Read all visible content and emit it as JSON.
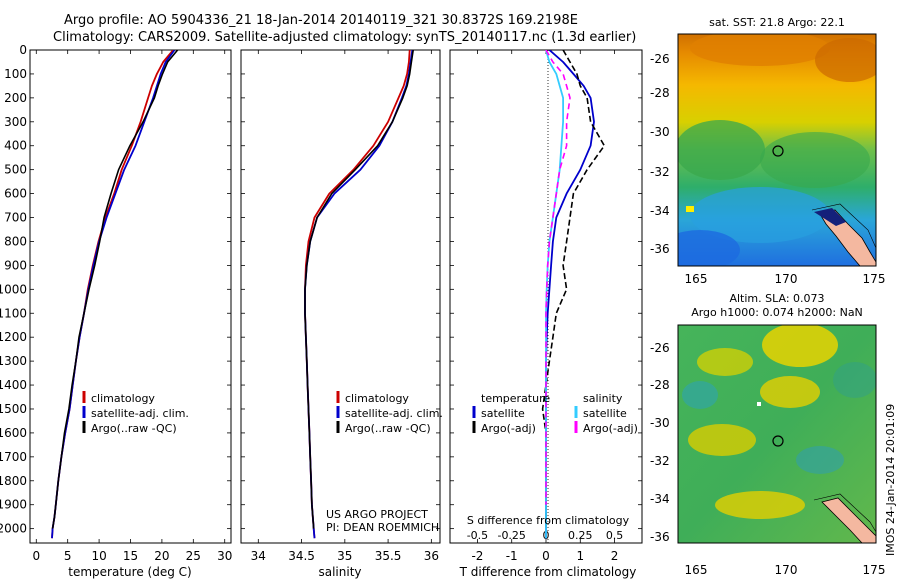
{
  "header": {
    "title_line1": "Argo profile: AO 5904336_21 18-Jan-2014 20140119_321 30.8372S 169.2198E",
    "title_line2": "Climatology: CARS2009. Satellite-adjusted climatology: synTS_20140117.nc (1.3d earlier)"
  },
  "colors": {
    "climatology": "#cc0000",
    "satellite": "#0000cc",
    "argo": "#000000",
    "salinity_satellite": "#33ccff",
    "salinity_argo": "#ff00ff"
  },
  "chart_data": [
    {
      "type": "line",
      "panel": "temperature",
      "xlabel": "temperature (deg C)",
      "xlim": [
        -1,
        31
      ],
      "xticks": [
        0,
        5,
        10,
        15,
        20,
        25,
        30
      ],
      "ylim": [
        2060,
        0
      ],
      "yticks": [
        0,
        100,
        200,
        300,
        400,
        500,
        600,
        700,
        800,
        900,
        1000,
        1100,
        1200,
        1300,
        1400,
        1500,
        1600,
        1700,
        1800,
        1900,
        2000
      ],
      "legend": [
        "climatology",
        "satellite-adj. clim.",
        "Argo(..raw -QC)"
      ],
      "series": [
        {
          "name": "climatology",
          "x": [
            21.8,
            20.2,
            19.2,
            18.4,
            17.8,
            16.6,
            15.2,
            13.6,
            12.4,
            11.0,
            9.9,
            9.0,
            8.2,
            7.6,
            6.9,
            6.3,
            5.8,
            5.3,
            4.6,
            4.0,
            3.5,
            3.1,
            2.9,
            2.6,
            2.5
          ],
          "y": [
            0,
            50,
            100,
            150,
            200,
            300,
            400,
            500,
            600,
            700,
            800,
            900,
            1000,
            1100,
            1200,
            1300,
            1400,
            1500,
            1600,
            1700,
            1800,
            1900,
            1950,
            2000,
            2040
          ]
        },
        {
          "name": "satellite-adj. clim.",
          "x": [
            22.0,
            20.6,
            19.8,
            19.2,
            18.6,
            17.2,
            15.8,
            14.0,
            12.6,
            11.2,
            10.0,
            9.1,
            8.3,
            7.6,
            6.9,
            6.3,
            5.8,
            5.3,
            4.6,
            4.0,
            3.5,
            3.1,
            2.9,
            2.6,
            2.5
          ],
          "y": [
            0,
            50,
            100,
            150,
            200,
            300,
            400,
            500,
            600,
            700,
            800,
            900,
            1000,
            1100,
            1200,
            1300,
            1400,
            1500,
            1600,
            1700,
            1800,
            1900,
            1950,
            2000,
            2040
          ]
        },
        {
          "name": "Argo(..raw -QC)",
          "x": [
            22.5,
            20.9,
            20.1,
            19.4,
            18.8,
            17.0,
            14.9,
            13.1,
            11.9,
            10.8,
            10.1,
            9.3,
            8.4,
            7.6,
            6.8,
            6.3,
            5.7,
            5.2,
            4.5,
            4.0,
            3.5,
            3.1,
            2.9,
            2.6
          ],
          "y": [
            0,
            50,
            100,
            150,
            200,
            300,
            400,
            500,
            600,
            700,
            800,
            900,
            1000,
            1100,
            1200,
            1300,
            1400,
            1500,
            1600,
            1700,
            1800,
            1900,
            1950,
            2000
          ]
        }
      ]
    },
    {
      "type": "line",
      "panel": "salinity",
      "xlabel": "salinity",
      "xlim": [
        33.8,
        36.1
      ],
      "xticks": [
        34,
        34.5,
        35,
        35.5,
        36
      ],
      "ylim": [
        2060,
        0
      ],
      "legend": [
        "climatology",
        "satellite-adj. clim.",
        "Argo(..raw -QC)"
      ],
      "annotation": [
        "US ARGO PROJECT",
        "PI: DEAN ROEMMICH"
      ],
      "series": [
        {
          "name": "climatology",
          "x": [
            35.75,
            35.74,
            35.72,
            35.68,
            35.62,
            35.5,
            35.33,
            35.1,
            34.82,
            34.65,
            34.58,
            34.55,
            34.54,
            34.54,
            34.55,
            34.56,
            34.57,
            34.58,
            34.59,
            34.6,
            34.61,
            34.62,
            34.63,
            34.64,
            34.65
          ],
          "y": [
            0,
            50,
            100,
            150,
            200,
            300,
            400,
            500,
            600,
            700,
            800,
            900,
            1000,
            1100,
            1200,
            1300,
            1400,
            1500,
            1600,
            1700,
            1800,
            1900,
            1950,
            2000,
            2040
          ]
        },
        {
          "name": "satellite-adj. clim.",
          "x": [
            35.78,
            35.76,
            35.74,
            35.71,
            35.66,
            35.55,
            35.4,
            35.18,
            34.88,
            34.68,
            34.6,
            34.56,
            34.54,
            34.54,
            34.55,
            34.56,
            34.57,
            34.58,
            34.59,
            34.6,
            34.61,
            34.62,
            34.63,
            34.64,
            34.65
          ],
          "y": [
            0,
            50,
            100,
            150,
            200,
            300,
            400,
            500,
            600,
            700,
            800,
            900,
            1000,
            1100,
            1200,
            1300,
            1400,
            1500,
            1600,
            1700,
            1800,
            1900,
            1950,
            2000,
            2040
          ]
        },
        {
          "name": "Argo(..raw -QC)",
          "x": [
            35.79,
            35.77,
            35.75,
            35.72,
            35.67,
            35.55,
            35.38,
            35.12,
            34.85,
            34.68,
            34.6,
            34.56,
            34.54,
            34.54,
            34.55,
            34.56,
            34.57,
            34.58,
            34.59,
            34.6,
            34.61,
            34.62,
            34.63,
            34.64
          ],
          "y": [
            0,
            50,
            100,
            150,
            200,
            300,
            400,
            500,
            600,
            700,
            800,
            900,
            1000,
            1100,
            1200,
            1300,
            1400,
            1500,
            1600,
            1700,
            1800,
            1900,
            1950,
            2000
          ]
        }
      ]
    },
    {
      "type": "line",
      "panel": "difference",
      "xlabel": "T difference from climatology",
      "xlabel_top": "S difference from climatology",
      "xlim": [
        -2.8,
        2.8
      ],
      "xticks": [
        -2,
        -1,
        0,
        1,
        2
      ],
      "sticks": [
        "-0.5",
        "-0.25",
        "0",
        "0.25",
        "0.5"
      ],
      "ylim": [
        2060,
        0
      ],
      "legend_temperature_title": "temperature",
      "legend_salinity_title": "salinity",
      "legend": [
        "satellite",
        "Argo(-adj)",
        "satellite",
        "Argo(-adj)"
      ],
      "series": [
        {
          "name": "satellite",
          "x": [
            0.1,
            0.5,
            0.8,
            1.1,
            1.3,
            1.4,
            1.3,
            1.0,
            0.6,
            0.3,
            0.2,
            0.15,
            0.1,
            0.05,
            0.02,
            0.0,
            0.0,
            0.0,
            0.0,
            0.0,
            0.0,
            0.0,
            0.0
          ],
          "y": [
            0,
            50,
            100,
            150,
            200,
            300,
            400,
            500,
            600,
            700,
            800,
            900,
            1000,
            1100,
            1200,
            1300,
            1400,
            1500,
            1600,
            1700,
            1800,
            1900,
            2040
          ]
        },
        {
          "name": "Argo(-adj)",
          "x": [
            0.5,
            0.7,
            0.9,
            1.0,
            1.2,
            1.3,
            1.7,
            1.2,
            0.8,
            0.7,
            0.6,
            0.5,
            0.6,
            0.3,
            0.2,
            0.1,
            0.0,
            -0.1,
            0.0,
            0.0,
            0.0,
            0.0,
            0.0
          ],
          "y": [
            0,
            50,
            100,
            150,
            200,
            300,
            400,
            500,
            600,
            700,
            800,
            900,
            1000,
            1100,
            1200,
            1300,
            1400,
            1500,
            1600,
            1700,
            1800,
            1900,
            2000
          ]
        },
        {
          "name": "satellite",
          "x": [
            0.0,
            0.1,
            0.3,
            0.4,
            0.5,
            0.5,
            0.45,
            0.4,
            0.3,
            0.2,
            0.1,
            0.05,
            0.02,
            0.0,
            0.0,
            0.0,
            0.0,
            0.0,
            0.0,
            0.0,
            0.0,
            0.0,
            0.0
          ],
          "y": [
            0,
            50,
            100,
            150,
            200,
            300,
            400,
            500,
            600,
            700,
            800,
            900,
            1000,
            1100,
            1200,
            1300,
            1400,
            1500,
            1600,
            1700,
            1800,
            1900,
            2040
          ]
        },
        {
          "name": "Argo(-adj)",
          "x": [
            0.0,
            0.2,
            0.5,
            0.6,
            0.7,
            0.6,
            0.6,
            0.4,
            0.3,
            0.2,
            0.1,
            0.05,
            0.02,
            0.0,
            0.0,
            0.0,
            0.0,
            0.0,
            0.0,
            0.0,
            0.0,
            0.0
          ],
          "y": [
            0,
            50,
            100,
            150,
            200,
            300,
            400,
            500,
            600,
            700,
            800,
            900,
            1000,
            1100,
            1200,
            1300,
            1400,
            1500,
            1600,
            1700,
            1800,
            1900
          ]
        }
      ]
    },
    {
      "type": "heatmap",
      "panel": "sst_map",
      "title": "sat. SST: 21.8  Argo: 22.1",
      "xticks": [
        "165",
        "170",
        "175"
      ],
      "yticks": [
        "-26",
        "-28",
        "-30",
        "-32",
        "-34",
        "-36"
      ],
      "marker": {
        "lon": 169.2,
        "lat": -30.8
      }
    },
    {
      "type": "heatmap",
      "panel": "sla_map",
      "title_line1": "Altim. SLA: 0.073",
      "title_line2": "Argo h1000: 0.074 h2000: NaN",
      "xticks": [
        "165",
        "170",
        "175"
      ],
      "yticks": [
        "-26",
        "-28",
        "-30",
        "-32",
        "-34",
        "-36"
      ],
      "marker": {
        "lon": 169.2,
        "lat": -30.8
      }
    }
  ],
  "watermark": "IMOS 24-Jan-2014 20:01:09"
}
